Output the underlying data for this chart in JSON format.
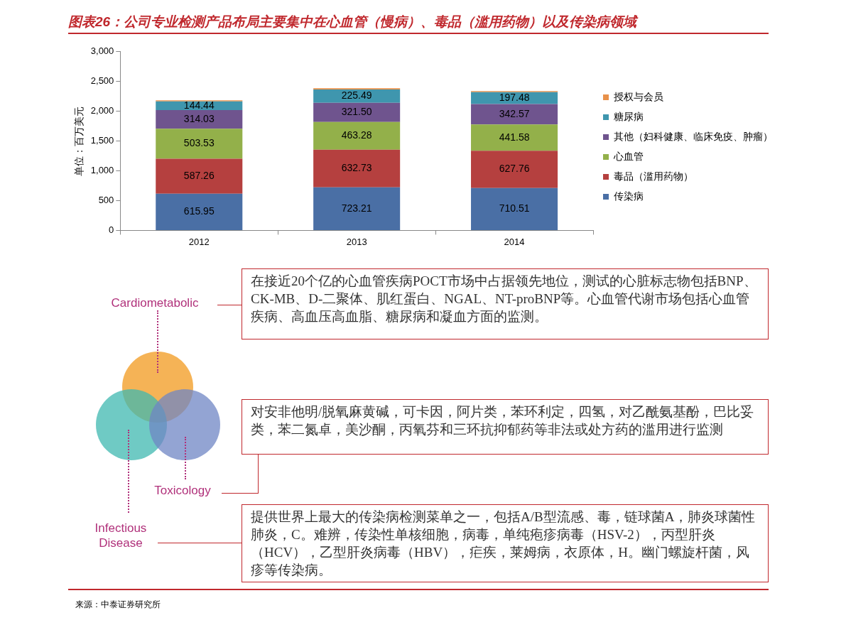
{
  "chart_data": {
    "type": "bar",
    "title": "图表26：公司专业检测产品布局主要集中在心血管（慢病）、毒品（滥用药物）以及传染病领域",
    "ylabel": "单位：百万美元",
    "categories": [
      "2012",
      "2013",
      "2014"
    ],
    "stacked": true,
    "ylim": [
      0,
      3000
    ],
    "yticks": [
      0,
      500,
      {
        "value": 1000,
        "label": "1,000"
      },
      {
        "value": 1500,
        "label": "1,500"
      },
      {
        "value": 2000,
        "label": "2,000"
      },
      {
        "value": 2500,
        "label": "2,500"
      },
      {
        "value": 3000,
        "label": "3,000"
      }
    ],
    "grid": false,
    "legend": "right",
    "series": [
      {
        "name": "传染病",
        "color": "#4a6fa5",
        "values": [
          615.95,
          723.21,
          710.51
        ],
        "value_labels": [
          "615.95",
          "723.21",
          "710.51"
        ]
      },
      {
        "name": "毒品（滥用药物）",
        "color": "#b5403f",
        "values": [
          587.26,
          632.73,
          627.76
        ],
        "value_labels": [
          "587.26",
          "632.73",
          "627.76"
        ]
      },
      {
        "name": "心血管",
        "color": "#93b04a",
        "values": [
          503.53,
          463.28,
          441.58
        ],
        "value_labels": [
          "503.53",
          "463.28",
          "441.58"
        ]
      },
      {
        "name": "其他（妇科健康、临床免疫、肿瘤）",
        "color": "#6f548e",
        "values": [
          314.03,
          321.5,
          342.57
        ],
        "value_labels": [
          "314.03",
          "321.50",
          "342.57"
        ]
      },
      {
        "name": "糖尿病",
        "color": "#3f96ae",
        "values": [
          144.44,
          225.49,
          197.48
        ],
        "value_labels": [
          "144.44",
          "225.49",
          "197.48"
        ]
      },
      {
        "name": "授权与会员",
        "color": "#e8914a",
        "values": [
          20,
          20,
          20
        ]
      }
    ],
    "annotations": [
      "Cardiometabolic",
      "在接近20个亿的心血管疾病POCT市场中占据领先地位，测试的心脏标志物包括BNP、CK-MB、D-二聚体、肌红蛋白、NGAL、NT-proBNP等。心血管代谢市场包括心血管疾病、高血压高血脂、糖尿病和凝血方面的监测。",
      "Toxicology",
      "对安非他明/脱氧麻黄碱，可卡因，阿片类，苯环利定，四氢，对乙酰氨基酚，巴比妥类，苯二氮卓，美沙酮，丙氧芬和三环抗抑郁药等非法或处方药的滥用进行监测",
      "Infectious Disease",
      "提供世界上最大的传染病检测菜单之一，包括A/B型流感、毒，链球菌A，肺炎球菌性肺炎，C。难辨，传染性单核细胞，病毒，单纯疱疹病毒（HSV-2），丙型肝炎（HCV），乙型肝炎病毒（HBV），疟疾，莱姆病，衣原体，H。幽门螺旋杆菌，风疹等传染病。",
      "来源：中泰证券研究所"
    ]
  }
}
